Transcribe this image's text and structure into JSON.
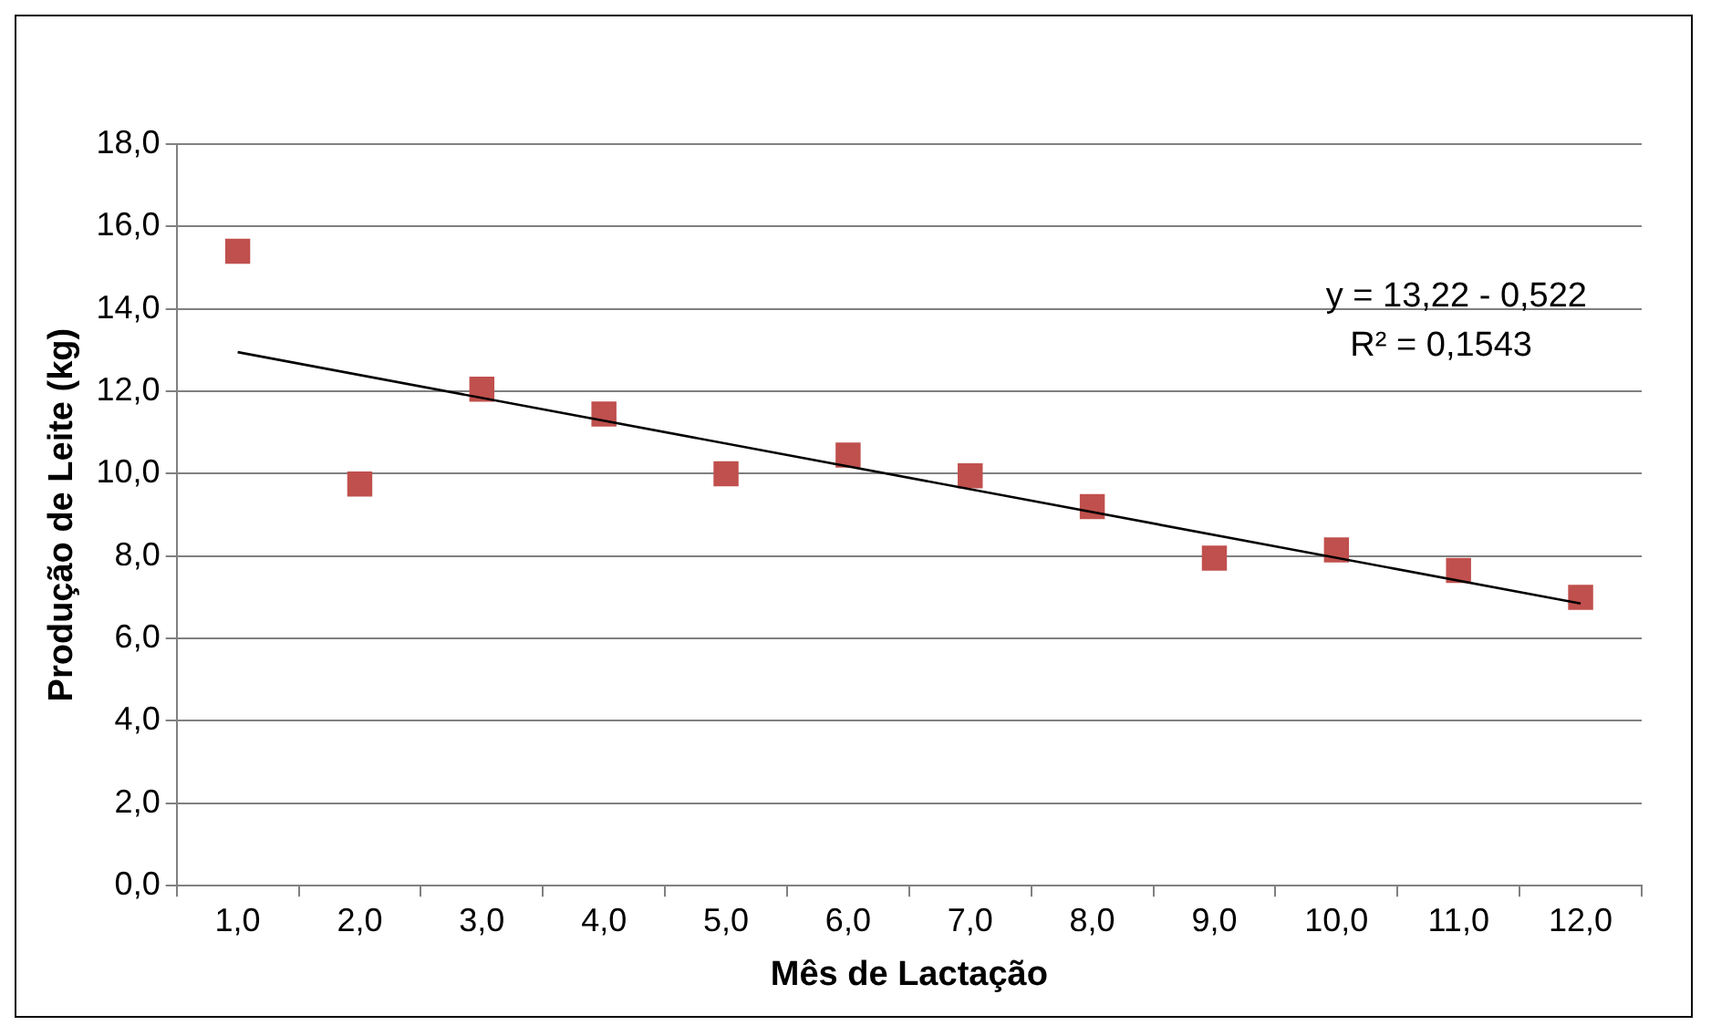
{
  "chart_data": {
    "type": "scatter",
    "xlabel": "Mês de Lactação",
    "ylabel": "Produção de Leite (kg)",
    "categories": [
      "1,0",
      "2,0",
      "3,0",
      "4,0",
      "5,0",
      "6,0",
      "7,0",
      "8,0",
      "9,0",
      "10,0",
      "11,0",
      "12,0"
    ],
    "series": [
      {
        "color": "#c0504d",
        "values": [
          15.4,
          9.75,
          12.05,
          11.45,
          10.0,
          10.45,
          9.95,
          9.2,
          7.95,
          8.15,
          7.65,
          7.0
        ],
        "marker": "square"
      },
      {
        "type": "line",
        "color": "#000000",
        "x": [
          "1,0",
          "12,0"
        ],
        "values": [
          12.95,
          6.85
        ],
        "marker": "none",
        "line_style": "solid"
      }
    ],
    "ylim": [
      0,
      18
    ],
    "yticks": [
      {
        "value": 0,
        "label": "0,0"
      },
      {
        "value": 2,
        "label": "2,0"
      },
      {
        "value": 4,
        "label": "4,0"
      },
      {
        "value": 6,
        "label": "6,0"
      },
      {
        "value": 8,
        "label": "8,0"
      },
      {
        "value": 10,
        "label": "10,0"
      },
      {
        "value": 12,
        "label": "12,0"
      },
      {
        "value": 14,
        "label": "14,0"
      },
      {
        "value": 16,
        "label": "16,0"
      },
      {
        "value": 18,
        "label": "18,0"
      }
    ],
    "grid": "y",
    "legend": false,
    "annotations": [
      "y = 13,22 - 0,522",
      "R² = 0,1543"
    ]
  }
}
